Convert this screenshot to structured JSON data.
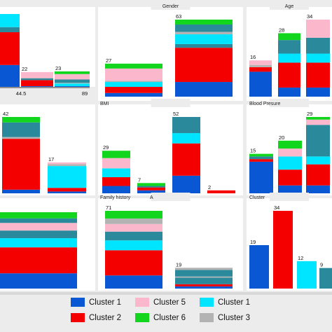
{
  "colors": {
    "c1": "#0a57d4",
    "c2": "#f50000",
    "c5": "#fbb8cc",
    "c6": "#12d61e",
    "c1b": "#00e5ff",
    "cg": "#b3b3b3",
    "teal": "#2a8a9c"
  },
  "legend": [
    {
      "label": "Cluster 1",
      "color": "#0a57d4"
    },
    {
      "label": "Cluster 5",
      "color": "#fbb8cc"
    },
    {
      "label": "Cluster 1",
      "color": "#00e5ff"
    },
    {
      "label": "Cluster 2",
      "color": "#f50000"
    },
    {
      "label": "Cluster 6",
      "color": "#12d61e"
    },
    {
      "label": "Cluster 3",
      "color": "#b3b3b3"
    }
  ],
  "chart_data": [
    {
      "type": "bar",
      "title": "",
      "stacked": true,
      "bar_labels": [
        "",
        "22",
        "23"
      ],
      "ticks": [
        "44.5",
        "89"
      ],
      "bars": [
        {
          "total": 100,
          "segments": [
            {
              "c": "c1",
              "v": 30
            },
            {
              "c": "c2",
              "v": 45
            },
            {
              "c": "teal",
              "v": 7
            },
            {
              "c": "c1b",
              "v": 18
            }
          ]
        },
        {
          "total": 22,
          "segments": [
            {
              "c": "c1",
              "v": 1
            },
            {
              "c": "c2",
              "v": 9
            },
            {
              "c": "teal",
              "v": 2.5
            },
            {
              "c": "cg",
              "v": 0.5
            },
            {
              "c": "c5",
              "v": 9
            }
          ]
        },
        {
          "total": 23,
          "segments": [
            {
              "c": "c1",
              "v": 1
            },
            {
              "c": "c1b",
              "v": 4
            },
            {
              "c": "cg",
              "v": 1
            },
            {
              "c": "teal",
              "v": 5
            },
            {
              "c": "c5",
              "v": 8
            },
            {
              "c": "c6",
              "v": 4
            }
          ]
        }
      ]
    },
    {
      "type": "bar",
      "title": "Gender",
      "stacked": true,
      "bar_labels": [
        "27",
        "63"
      ],
      "bars": [
        {
          "total": 27,
          "segments": [
            {
              "c": "c1",
              "v": 3
            },
            {
              "c": "c2",
              "v": 5
            },
            {
              "c": "c1b",
              "v": 4
            },
            {
              "c": "cg",
              "v": 1
            },
            {
              "c": "c5",
              "v": 10
            },
            {
              "c": "c6",
              "v": 4
            }
          ]
        },
        {
          "total": 63,
          "segments": [
            {
              "c": "c1",
              "v": 12
            },
            {
              "c": "c2",
              "v": 28
            },
            {
              "c": "teal",
              "v": 3
            },
            {
              "c": "c1b",
              "v": 8
            },
            {
              "c": "cg",
              "v": 2
            },
            {
              "c": "teal",
              "v": 6
            },
            {
              "c": "c6",
              "v": 4
            }
          ]
        }
      ]
    },
    {
      "type": "bar",
      "title": "Age",
      "stacked": true,
      "bar_labels": [
        "16",
        "28",
        "34"
      ],
      "bars": [
        {
          "total": 16,
          "segments": [
            {
              "c": "c1",
              "v": 11
            },
            {
              "c": "c2",
              "v": 2
            },
            {
              "c": "cg",
              "v": 1
            },
            {
              "c": "c5",
              "v": 2
            }
          ]
        },
        {
          "total": 28,
          "segments": [
            {
              "c": "c1",
              "v": 4
            },
            {
              "c": "c2",
              "v": 11
            },
            {
              "c": "c1b",
              "v": 4
            },
            {
              "c": "teal",
              "v": 6
            },
            {
              "c": "c6",
              "v": 3
            }
          ]
        },
        {
          "total": 34,
          "segments": [
            {
              "c": "c1",
              "v": 4
            },
            {
              "c": "c2",
              "v": 11
            },
            {
              "c": "c1b",
              "v": 4
            },
            {
              "c": "teal",
              "v": 7
            },
            {
              "c": "c5",
              "v": 8
            }
          ]
        }
      ]
    },
    {
      "type": "bar",
      "title": "",
      "stacked": true,
      "bar_labels": [
        "42",
        "17"
      ],
      "bars": [
        {
          "total": 42,
          "segments": [
            {
              "c": "c1",
              "v": 2
            },
            {
              "c": "c2",
              "v": 28
            },
            {
              "c": "cg",
              "v": 1
            },
            {
              "c": "teal",
              "v": 8
            },
            {
              "c": "c6",
              "v": 3
            }
          ]
        },
        {
          "total": 17,
          "segments": [
            {
              "c": "c1",
              "v": 1
            },
            {
              "c": "c2",
              "v": 2
            },
            {
              "c": "c1b",
              "v": 12
            },
            {
              "c": "cg",
              "v": 1
            },
            {
              "c": "c5",
              "v": 1
            }
          ]
        }
      ]
    },
    {
      "type": "bar",
      "title": "BMI",
      "stacked": true,
      "bar_labels": [
        "29",
        "7",
        "52",
        "2"
      ],
      "bars": [
        {
          "total": 29,
          "segments": [
            {
              "c": "c1",
              "v": 5
            },
            {
              "c": "c2",
              "v": 6
            },
            {
              "c": "c1b",
              "v": 6
            },
            {
              "c": "c5",
              "v": 7
            },
            {
              "c": "c6",
              "v": 5
            }
          ]
        },
        {
          "total": 7,
          "segments": [
            {
              "c": "c1",
              "v": 2
            },
            {
              "c": "c2",
              "v": 2
            },
            {
              "c": "teal",
              "v": 1
            },
            {
              "c": "c6",
              "v": 2
            }
          ]
        },
        {
          "total": 52,
          "segments": [
            {
              "c": "c1",
              "v": 12
            },
            {
              "c": "c2",
              "v": 22
            },
            {
              "c": "c1b",
              "v": 7
            },
            {
              "c": "teal",
              "v": 11
            }
          ]
        },
        {
          "total": 2,
          "segments": [
            {
              "c": "c2",
              "v": 2
            }
          ]
        }
      ]
    },
    {
      "type": "bar",
      "title": "Blood Presure",
      "stacked": true,
      "bar_labels": [
        "15",
        "20",
        "29"
      ],
      "bars": [
        {
          "total": 15,
          "segments": [
            {
              "c": "c1",
              "v": 12
            },
            {
              "c": "c2",
              "v": 1
            },
            {
              "c": "teal",
              "v": 1
            },
            {
              "c": "c6",
              "v": 1
            }
          ]
        },
        {
          "total": 20,
          "segments": [
            {
              "c": "c1",
              "v": 3
            },
            {
              "c": "c2",
              "v": 6
            },
            {
              "c": "c1b",
              "v": 5
            },
            {
              "c": "c5",
              "v": 3
            },
            {
              "c": "c6",
              "v": 3
            }
          ]
        },
        {
          "total": 29,
          "segments": [
            {
              "c": "c1",
              "v": 3
            },
            {
              "c": "c2",
              "v": 8
            },
            {
              "c": "c1b",
              "v": 3
            },
            {
              "c": "teal",
              "v": 12
            },
            {
              "c": "c5",
              "v": 2
            },
            {
              "c": "c6",
              "v": 1
            }
          ]
        }
      ]
    },
    {
      "type": "bar",
      "title": "",
      "stacked": true,
      "bar_labels": [
        ""
      ],
      "bars": [
        {
          "total": 100,
          "segments": [
            {
              "c": "c1",
              "v": 20
            },
            {
              "c": "c2",
              "v": 34
            },
            {
              "c": "c1b",
              "v": 12
            },
            {
              "c": "teal",
              "v": 10
            },
            {
              "c": "c5",
              "v": 10
            },
            {
              "c": "teal",
              "v": 6
            },
            {
              "c": "c6",
              "v": 8
            }
          ]
        }
      ]
    },
    {
      "type": "bar",
      "title": "Family history",
      "title2": "A",
      "stacked": true,
      "bar_labels": [
        "71",
        "19"
      ],
      "bars": [
        {
          "total": 71,
          "segments": [
            {
              "c": "c1",
              "v": 12
            },
            {
              "c": "c2",
              "v": 23
            },
            {
              "c": "c1b",
              "v": 9
            },
            {
              "c": "teal",
              "v": 8
            },
            {
              "c": "c5",
              "v": 7
            },
            {
              "c": "cg",
              "v": 5
            },
            {
              "c": "c6",
              "v": 7
            }
          ]
        },
        {
          "total": 19,
          "segments": [
            {
              "c": "c1",
              "v": 2
            },
            {
              "c": "c2",
              "v": 2
            },
            {
              "c": "teal",
              "v": 6
            },
            {
              "c": "cg",
              "v": 1
            },
            {
              "c": "teal",
              "v": 6
            },
            {
              "c": "cg",
              "v": 2
            }
          ]
        }
      ]
    },
    {
      "type": "bar",
      "title": "Cluster",
      "stacked": false,
      "bar_labels": [
        "19",
        "34",
        "12",
        "9"
      ],
      "bars": [
        {
          "total": 19,
          "segments": [
            {
              "c": "c1",
              "v": 19
            }
          ]
        },
        {
          "total": 34,
          "segments": [
            {
              "c": "c2",
              "v": 34
            }
          ]
        },
        {
          "total": 12,
          "segments": [
            {
              "c": "c1b",
              "v": 12
            }
          ]
        },
        {
          "total": 9,
          "segments": [
            {
              "c": "teal",
              "v": 9
            }
          ]
        }
      ]
    }
  ]
}
